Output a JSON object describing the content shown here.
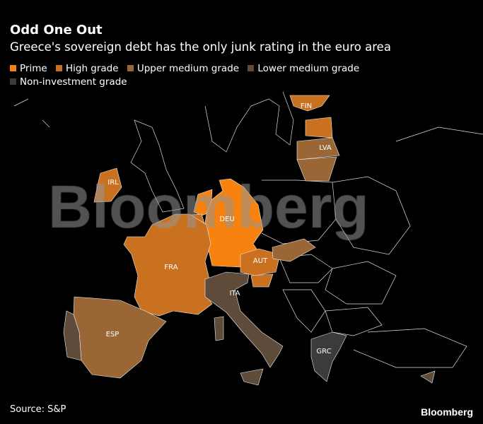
{
  "title": "Odd One Out",
  "subtitle": "Greece's sovereign debt has the only junk rating in the euro area",
  "legend": [
    {
      "label": "Prime",
      "color": "#f7820f"
    },
    {
      "label": "High grade",
      "color": "#c9711f"
    },
    {
      "label": "Upper medium grade",
      "color": "#9a6636"
    },
    {
      "label": "Lower medium grade",
      "color": "#5f4b3a"
    },
    {
      "label": "Non-investment grade",
      "color": "#3b3b3b"
    }
  ],
  "countries": {
    "FIN": {
      "label": "FIN",
      "rating": "High grade"
    },
    "LVA": {
      "label": "LVA",
      "rating": "Upper medium grade"
    },
    "IRL": {
      "label": "IRL",
      "rating": "High grade"
    },
    "DEU": {
      "label": "DEU",
      "rating": "Prime"
    },
    "FRA": {
      "label": "FRA",
      "rating": "High grade"
    },
    "AUT": {
      "label": "AUT",
      "rating": "High grade"
    },
    "ITA": {
      "label": "ITA",
      "rating": "Lower medium grade"
    },
    "ESP": {
      "label": "ESP",
      "rating": "Upper medium grade"
    },
    "GRC": {
      "label": "GRC",
      "rating": "Non-investment grade"
    }
  },
  "watermark": "Bloomberg",
  "source": "Source: S&P",
  "logo": "Bloomberg"
}
